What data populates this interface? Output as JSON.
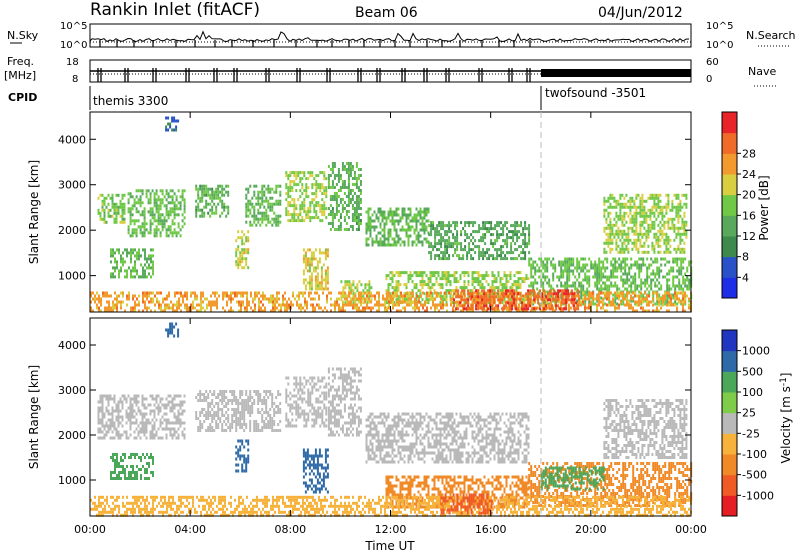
{
  "header": {
    "station": "Rankin Inlet (fitACF)",
    "beam": "Beam 06",
    "date": "04/Jun/2012"
  },
  "top_panels": {
    "nsky_label": "N.Sky",
    "nsky_ticks": [
      "10^5",
      "10^0"
    ],
    "nsearch_label": "N.Search",
    "freq_label_1": "Freq.",
    "freq_label_2": "[MHz]",
    "freq_ticks": [
      "18",
      "8"
    ],
    "nave_label": "Nave",
    "nave_ticks": [
      "60",
      "0"
    ],
    "cpid_label": "CPID",
    "cpid_segments": [
      {
        "name": "themis 3300",
        "start": "00:00",
        "end": "18:00"
      },
      {
        "name": "twofsound -3501",
        "start": "18:00",
        "end": "24:00"
      }
    ]
  },
  "x_axis": {
    "label": "Time UT",
    "ticks": [
      "00:00",
      "04:00",
      "08:00",
      "12:00",
      "16:00",
      "20:00",
      "00:00"
    ]
  },
  "colors": {
    "power": [
      "#1e2ee6",
      "#2a52c8",
      "#3d8a4c",
      "#58a95c",
      "#6fc846",
      "#d8ce40",
      "#f29a2e",
      "#f06a28",
      "#e8242a"
    ],
    "velocity": [
      "#e41e24",
      "#f05a24",
      "#f08a26",
      "#f6b23a",
      "#b9b9b9",
      "#7fcc4a",
      "#4ba85a",
      "#2f6aa8",
      "#2036c0"
    ]
  },
  "chart_data": [
    {
      "type": "heatmap",
      "title": "",
      "xlabel": "",
      "ylabel": "Slant Range [km]",
      "xlim": [
        "00:00",
        "24:00"
      ],
      "ylim": [
        200,
        4600
      ],
      "yticks": [
        1000,
        2000,
        3000,
        4000
      ],
      "colorbar": {
        "label": "Power [dB]",
        "ticks": [
          4,
          8,
          12,
          16,
          20,
          24,
          28
        ],
        "range": [
          0,
          30
        ]
      },
      "patches": [
        {
          "t": [
            0.3,
            1.4
          ],
          "r": [
            2200,
            2800
          ],
          "v": 15
        },
        {
          "t": [
            1.5,
            3.8
          ],
          "r": [
            1900,
            2900
          ],
          "v": 14
        },
        {
          "t": [
            3.0,
            3.5
          ],
          "r": [
            4200,
            4500
          ],
          "v": 5
        },
        {
          "t": [
            4.2,
            5.5
          ],
          "r": [
            2300,
            3000
          ],
          "v": 12
        },
        {
          "t": [
            6.2,
            7.6
          ],
          "r": [
            2100,
            3000
          ],
          "v": 13
        },
        {
          "t": [
            7.8,
            9.4
          ],
          "r": [
            2200,
            3300
          ],
          "v": 16
        },
        {
          "t": [
            9.5,
            10.8
          ],
          "r": [
            2000,
            3500
          ],
          "v": 12
        },
        {
          "t": [
            11.0,
            13.5
          ],
          "r": [
            1700,
            2500
          ],
          "v": 13
        },
        {
          "t": [
            13.5,
            17.5
          ],
          "r": [
            1400,
            2200
          ],
          "v": 11
        },
        {
          "t": [
            0.8,
            2.5
          ],
          "r": [
            1000,
            1600
          ],
          "v": 13
        },
        {
          "t": [
            5.8,
            6.3
          ],
          "r": [
            1200,
            2000
          ],
          "v": 18
        },
        {
          "t": [
            8.5,
            9.5
          ],
          "r": [
            700,
            1600
          ],
          "v": 19
        },
        {
          "t": [
            10.0,
            11.2
          ],
          "r": [
            400,
            900
          ],
          "v": 17
        },
        {
          "t": [
            11.8,
            17.5
          ],
          "r": [
            400,
            1100
          ],
          "v": 16
        },
        {
          "t": [
            17.5,
            24.0
          ],
          "r": [
            400,
            1400
          ],
          "v": 14
        },
        {
          "t": [
            20.5,
            23.8
          ],
          "r": [
            1500,
            2800
          ],
          "v": 16
        },
        {
          "t": [
            0.0,
            24.0
          ],
          "r": [
            220,
            650
          ],
          "v": 22
        },
        {
          "t": [
            14.5,
            19.5
          ],
          "r": [
            250,
            700
          ],
          "v": 27
        }
      ]
    },
    {
      "type": "heatmap",
      "title": "",
      "xlabel": "Time UT",
      "ylabel": "Slant Range [km]",
      "xlim": [
        "00:00",
        "24:00"
      ],
      "ylim": [
        200,
        4600
      ],
      "yticks": [
        1000,
        2000,
        3000,
        4000
      ],
      "colorbar": {
        "label": "Velocity [m s^-1]",
        "ticks": [
          -1000,
          -500,
          -100,
          -25,
          25,
          100,
          500,
          1000
        ]
      },
      "patches": [
        {
          "t": [
            0.3,
            3.8
          ],
          "r": [
            1900,
            2900
          ],
          "v": 0
        },
        {
          "t": [
            3.0,
            3.5
          ],
          "r": [
            4200,
            4500
          ],
          "v": 900
        },
        {
          "t": [
            4.2,
            7.6
          ],
          "r": [
            2100,
            3000
          ],
          "v": 0
        },
        {
          "t": [
            7.8,
            9.4
          ],
          "r": [
            2200,
            3300
          ],
          "v": 20
        },
        {
          "t": [
            9.5,
            10.8
          ],
          "r": [
            2000,
            3500
          ],
          "v": 0
        },
        {
          "t": [
            11.0,
            17.5
          ],
          "r": [
            1400,
            2500
          ],
          "v": 0
        },
        {
          "t": [
            8.5,
            9.5
          ],
          "r": [
            700,
            1700
          ],
          "v": 900
        },
        {
          "t": [
            5.8,
            6.3
          ],
          "r": [
            1200,
            1900
          ],
          "v": 600
        },
        {
          "t": [
            0.8,
            2.5
          ],
          "r": [
            1000,
            1600
          ],
          "v": 200
        },
        {
          "t": [
            11.8,
            17.5
          ],
          "r": [
            400,
            1100
          ],
          "v": -300
        },
        {
          "t": [
            17.5,
            24.0
          ],
          "r": [
            400,
            1400
          ],
          "v": -150
        },
        {
          "t": [
            18.0,
            20.5
          ],
          "r": [
            800,
            1300
          ],
          "v": 200
        },
        {
          "t": [
            20.5,
            23.8
          ],
          "r": [
            1500,
            2800
          ],
          "v": 0
        },
        {
          "t": [
            0.0,
            24.0
          ],
          "r": [
            220,
            650
          ],
          "v": -40
        },
        {
          "t": [
            14.0,
            16.0
          ],
          "r": [
            250,
            700
          ],
          "v": -600
        }
      ]
    }
  ]
}
